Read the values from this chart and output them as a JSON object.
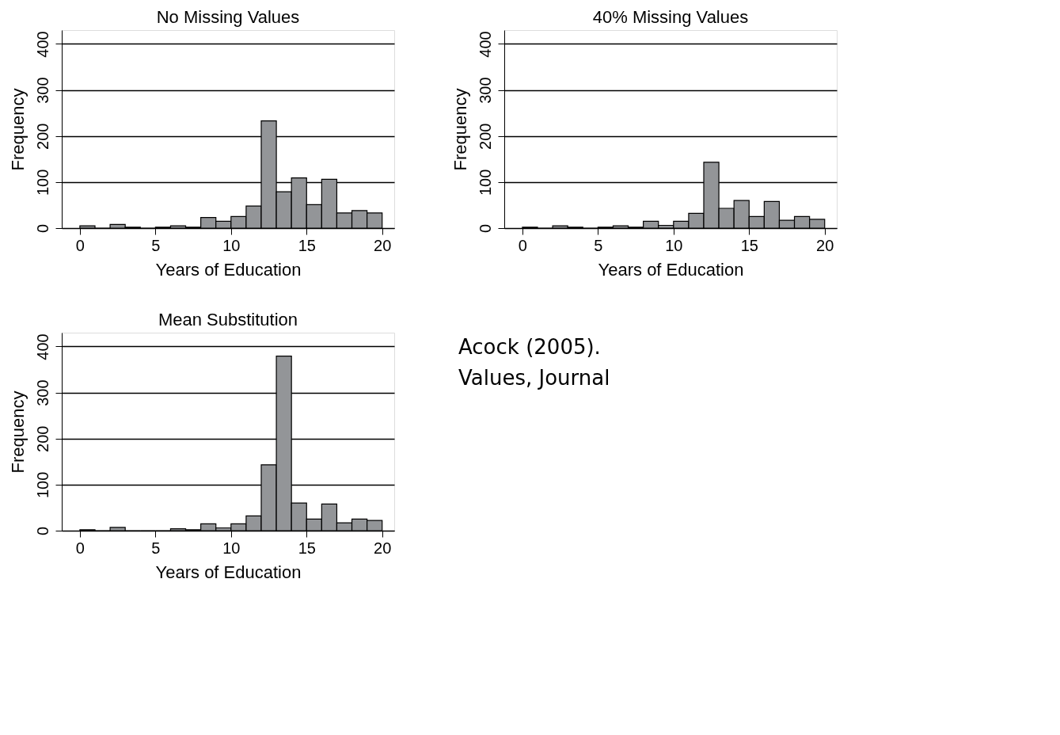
{
  "chart_data": [
    {
      "type": "histogram",
      "title": "No Missing Values",
      "xlabel": "Years of Education",
      "ylabel": "Frequency",
      "bins": [
        0,
        1,
        2,
        3,
        4,
        5,
        6,
        7,
        8,
        9,
        10,
        11,
        12,
        13,
        14,
        15,
        16,
        17,
        18,
        19,
        20
      ],
      "values": [
        5,
        0,
        8,
        2,
        0,
        2,
        5,
        2,
        23,
        15,
        25,
        48,
        233,
        79,
        109,
        51,
        106,
        33,
        38,
        33
      ],
      "color": "#939598",
      "xlim": [
        -1.2,
        20.8
      ],
      "xticks": [
        0,
        5,
        10,
        15,
        20
      ],
      "ylim": [
        0,
        430
      ],
      "yticks": [
        0,
        100,
        200,
        300,
        400
      ],
      "grid": "y"
    },
    {
      "type": "histogram",
      "title": "40% Missing Values",
      "xlabel": "Years of Education",
      "ylabel": "Frequency",
      "bins": [
        0,
        1,
        2,
        3,
        4,
        5,
        6,
        7,
        8,
        9,
        10,
        11,
        12,
        13,
        14,
        15,
        16,
        17,
        18,
        19,
        20
      ],
      "values": [
        2,
        0,
        5,
        2,
        0,
        2,
        5,
        2,
        15,
        6,
        15,
        32,
        143,
        43,
        60,
        25,
        58,
        17,
        25,
        19
      ],
      "color": "#939598",
      "xlim": [
        -1.2,
        20.8
      ],
      "xticks": [
        0,
        5,
        10,
        15,
        20
      ],
      "ylim": [
        0,
        430
      ],
      "yticks": [
        0,
        100,
        200,
        300,
        400
      ],
      "grid": "y"
    },
    {
      "type": "histogram",
      "title": "Mean Substitution",
      "xlabel": "Years of Education",
      "ylabel": "Frequency",
      "bins": [
        0,
        1,
        2,
        3,
        4,
        5,
        6,
        7,
        8,
        9,
        10,
        11,
        12,
        13,
        14,
        15,
        16,
        17,
        18,
        19,
        20
      ],
      "values": [
        2,
        0,
        7,
        0,
        0,
        0,
        4,
        2,
        15,
        6,
        15,
        32,
        143,
        379,
        60,
        25,
        58,
        17,
        25,
        22
      ],
      "color": "#939598",
      "xlim": [
        -1.2,
        20.8
      ],
      "xticks": [
        0,
        5,
        10,
        15,
        20
      ],
      "ylim": [
        0,
        430
      ],
      "yticks": [
        0,
        100,
        200,
        300,
        400
      ],
      "grid": "y"
    },
    {
      "type": "other",
      "annotations": [
        "Acock (2005).",
        "Values, Journal"
      ]
    }
  ]
}
